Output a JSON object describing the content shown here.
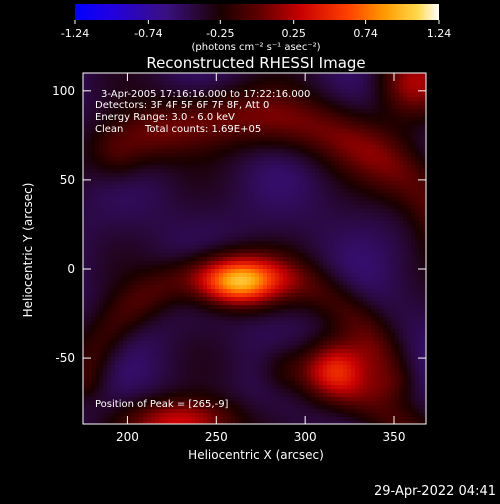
{
  "chart_data": {
    "type": "heatmap",
    "title": "Reconstructed RHESSI Image",
    "xlabel": "Heliocentric X (arcsec)",
    "ylabel": "Heliocentric Y (arcsec)",
    "xlim": [
      175,
      368
    ],
    "ylim": [
      -87,
      110
    ],
    "x_ticks": [
      200,
      250,
      300,
      350
    ],
    "y_ticks": [
      -50,
      0,
      50,
      100
    ],
    "colorbar": {
      "ticks": [
        "-1.24",
        "-0.74",
        "-0.25",
        "0.25",
        "0.74",
        "1.24"
      ],
      "range": [
        -1.24,
        1.24
      ],
      "unit_label": "(photons cm⁻² s⁻¹ asec⁻²)",
      "colormap": [
        "#0000ff",
        "#2a00d8",
        "#3a0a6a",
        "#1a0000",
        "#5a0000",
        "#c80000",
        "#ff4000",
        "#ff9a00",
        "#ffd84a",
        "#ffffff"
      ]
    },
    "annotations": {
      "time_range": "3-Apr-2005 17:16:16.000 to 17:22:16.000",
      "detectors": "Detectors: 3F 4F 5F 6F 7F 8F, Att 0",
      "energy": "Energy Range: 3.0 - 6.0 keV",
      "method": "Clean",
      "total_counts": "Total counts: 1.69E+05",
      "peak_position": "Position of Peak = [265,-9]"
    },
    "peak": [
      265,
      -9
    ],
    "sources": [
      {
        "x": 262,
        "y": -8,
        "amp": 1.24,
        "sx": 16,
        "sy": 9
      },
      {
        "x": 318,
        "y": -55,
        "amp": 0.62,
        "sx": 12,
        "sy": 11
      },
      {
        "x": 230,
        "y": -86,
        "amp": 0.78,
        "sx": 22,
        "sy": 9
      },
      {
        "x": 360,
        "y": 105,
        "amp": 0.6,
        "sx": 14,
        "sy": 14
      }
    ],
    "arcs": [
      {
        "cx": 265,
        "cy": -60,
        "r": 145,
        "w": 12,
        "amp": 0.5,
        "t0": 30,
        "t1": 118
      },
      {
        "cx": 262,
        "cy": -92,
        "r": 92,
        "w": 9,
        "amp": 0.34,
        "t0": 20,
        "t1": 160
      },
      {
        "cx": 270,
        "cy": -175,
        "r": 120,
        "w": 10,
        "amp": 0.35,
        "t0": 20,
        "t1": 80
      }
    ],
    "background": -0.45
  },
  "footer": {
    "timestamp": "29-Apr-2022 04:41"
  }
}
